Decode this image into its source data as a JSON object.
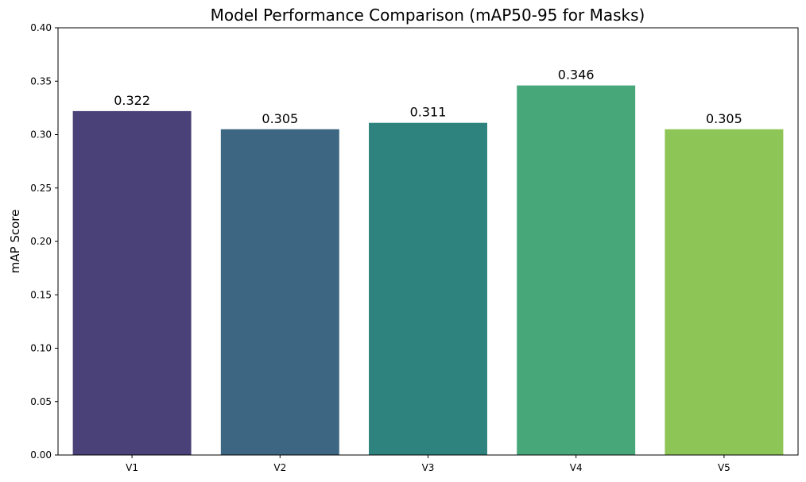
{
  "chart_data": {
    "type": "bar",
    "title": "Model Performance Comparison (mAP50-95 for Masks)",
    "xlabel": "",
    "ylabel": "mAP Score",
    "categories": [
      "V1",
      "V2",
      "V3",
      "V4",
      "V5"
    ],
    "values": [
      0.322,
      0.305,
      0.311,
      0.346,
      0.305
    ],
    "data_labels": [
      "0.322",
      "0.305",
      "0.311",
      "0.346",
      "0.305"
    ],
    "colors": [
      "#4a4178",
      "#3d6682",
      "#2f837e",
      "#48a778",
      "#8dc556"
    ],
    "ylim": [
      0,
      0.4
    ],
    "yticks": [
      0.0,
      0.05,
      0.1,
      0.15,
      0.2,
      0.25,
      0.3,
      0.35,
      0.4
    ],
    "ytick_labels": [
      "0.00",
      "0.05",
      "0.10",
      "0.15",
      "0.20",
      "0.25",
      "0.30",
      "0.35",
      "0.40"
    ],
    "grid": false,
    "legend": "none"
  }
}
